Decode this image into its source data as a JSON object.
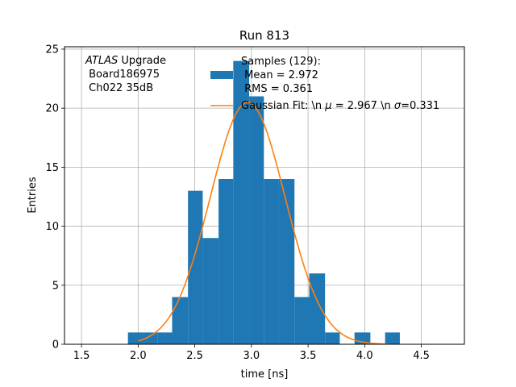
{
  "chart_data": {
    "type": "histogram",
    "title": "Run 813",
    "xlabel": "time [ns]",
    "ylabel": "Entries",
    "xlim": [
      1.35,
      4.88
    ],
    "ylim": [
      0,
      25.2
    ],
    "xticks": [
      "1.5",
      "2.0",
      "2.5",
      "3.0",
      "3.5",
      "4.0",
      "4.5"
    ],
    "xtick_values": [
      1.5,
      2.0,
      2.5,
      3.0,
      3.5,
      4.0,
      4.5
    ],
    "yticks": [
      "0",
      "5",
      "10",
      "15",
      "20",
      "25"
    ],
    "ytick_values": [
      0,
      5,
      10,
      15,
      20,
      25
    ],
    "grid": true,
    "annotation": {
      "italic": "ATLAS",
      "line1_rest": " Upgrade",
      "line2": " Board186975",
      "line3": " Ch022 35dB"
    },
    "histogram": {
      "name": "Samples (129):\n Mean = 2.972\n RMS = 0.361",
      "legend_lines": [
        "Samples (129):",
        " Mean = 2.972",
        " RMS = 0.361"
      ],
      "color": "#1f77b4",
      "bins": [
        {
          "x0": 1.91,
          "x1": 2.04,
          "count": 1
        },
        {
          "x0": 2.04,
          "x1": 2.17,
          "count": 1
        },
        {
          "x0": 2.17,
          "x1": 2.3,
          "count": 1
        },
        {
          "x0": 2.3,
          "x1": 2.44,
          "count": 4
        },
        {
          "x0": 2.44,
          "x1": 2.57,
          "count": 13
        },
        {
          "x0": 2.57,
          "x1": 2.71,
          "count": 9
        },
        {
          "x0": 2.71,
          "x1": 2.84,
          "count": 14
        },
        {
          "x0": 2.84,
          "x1": 2.98,
          "count": 24
        },
        {
          "x0": 2.98,
          "x1": 3.11,
          "count": 21
        },
        {
          "x0": 3.11,
          "x1": 3.24,
          "count": 14
        },
        {
          "x0": 3.24,
          "x1": 3.38,
          "count": 14
        },
        {
          "x0": 3.38,
          "x1": 3.51,
          "count": 4
        },
        {
          "x0": 3.51,
          "x1": 3.65,
          "count": 6
        },
        {
          "x0": 3.65,
          "x1": 3.78,
          "count": 1
        },
        {
          "x0": 3.78,
          "x1": 3.91,
          "count": 0
        },
        {
          "x0": 3.91,
          "x1": 4.05,
          "count": 1
        },
        {
          "x0": 4.05,
          "x1": 4.18,
          "count": 0
        },
        {
          "x0": 4.18,
          "x1": 4.31,
          "count": 1
        }
      ]
    },
    "fit": {
      "name": "Gaussian Fit: \\n μ = 2.967 \\n σ=0.331",
      "legend_prefix": "Gaussian Fit: \\n ",
      "legend_mu": "μ",
      "legend_mid": " = 2.967 \\n ",
      "legend_sigma": "σ",
      "legend_suffix": "=0.331",
      "mu": 2.967,
      "sigma": 0.331,
      "amplitude": 20.5,
      "x_range": [
        2.0,
        4.22
      ],
      "color": "#ff7f0e"
    }
  }
}
